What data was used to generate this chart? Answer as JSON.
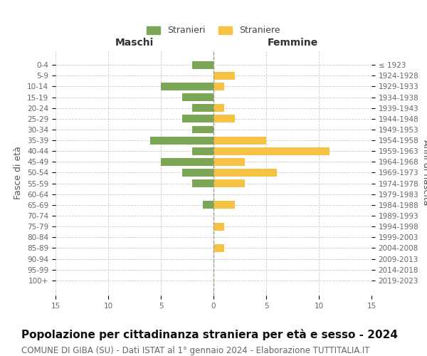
{
  "age_groups": [
    "100+",
    "95-99",
    "90-94",
    "85-89",
    "80-84",
    "75-79",
    "70-74",
    "65-69",
    "60-64",
    "55-59",
    "50-54",
    "45-49",
    "40-44",
    "35-39",
    "30-34",
    "25-29",
    "20-24",
    "15-19",
    "10-14",
    "5-9",
    "0-4"
  ],
  "birth_years": [
    "≤ 1923",
    "1924-1928",
    "1929-1933",
    "1934-1938",
    "1939-1943",
    "1944-1948",
    "1949-1953",
    "1954-1958",
    "1959-1963",
    "1964-1968",
    "1969-1973",
    "1974-1978",
    "1979-1983",
    "1984-1988",
    "1989-1993",
    "1994-1998",
    "1999-2003",
    "2004-2008",
    "2009-2013",
    "2014-2018",
    "2019-2023"
  ],
  "maschi": [
    0,
    0,
    0,
    0,
    0,
    0,
    0,
    1,
    0,
    2,
    3,
    5,
    2,
    6,
    2,
    3,
    2,
    3,
    5,
    0,
    2
  ],
  "femmine": [
    0,
    0,
    0,
    1,
    0,
    1,
    0,
    2,
    0,
    3,
    6,
    3,
    11,
    5,
    0,
    2,
    1,
    0,
    1,
    2,
    0
  ],
  "male_color": "#7aa655",
  "female_color": "#f5c243",
  "grid_color": "#cccccc",
  "center_line_color": "#999977",
  "title": "Popolazione per cittadinanza straniera per età e sesso - 2024",
  "subtitle": "COMUNE DI GIBA (SU) - Dati ISTAT al 1° gennaio 2024 - Elaborazione TUTTITALIA.IT",
  "xlabel_left": "Maschi",
  "xlabel_right": "Femmine",
  "ylabel_left": "Fasce di età",
  "ylabel_right": "Anni di nascita",
  "legend_male": "Stranieri",
  "legend_female": "Straniere",
  "xlim": 15,
  "bar_height": 0.72,
  "title_fontsize": 11,
  "subtitle_fontsize": 8.5,
  "tick_fontsize": 7.5,
  "label_fontsize": 9,
  "header_fontsize": 10
}
